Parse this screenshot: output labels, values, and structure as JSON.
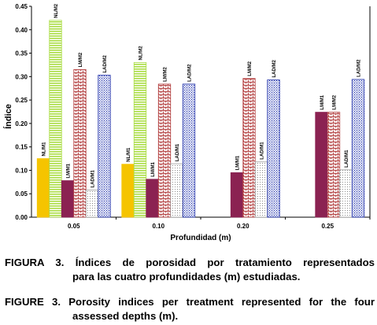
{
  "chart_data": {
    "type": "bar",
    "ylabel": "Índice",
    "xlabel": "Profundidad (m)",
    "ylim": [
      0,
      0.45
    ],
    "yticks": [
      "0.00",
      "0.05",
      "0.10",
      "0.15",
      "0.20",
      "0.25",
      "0.30",
      "0.35",
      "0.40",
      "0.45"
    ],
    "categories": [
      "0.05",
      "0.10",
      "0.20",
      "0.25"
    ],
    "grid": false,
    "legend": "labels printed above each bar",
    "series": [
      {
        "name": "NL/M1",
        "color": "#f5c400",
        "pattern": "solid",
        "values": [
          0.125,
          0.113,
          null,
          null
        ]
      },
      {
        "name": "NL/M2",
        "color": "#aadd44",
        "pattern": "hlines",
        "values": [
          0.42,
          0.33,
          null,
          null
        ]
      },
      {
        "name": "LM/M1",
        "color": "#8b2252",
        "pattern": "solid",
        "values": [
          0.078,
          0.081,
          0.095,
          0.224
        ]
      },
      {
        "name": "LM/M2",
        "color": "#b84a4a",
        "pattern": "brick",
        "values": [
          0.315,
          0.284,
          0.296,
          0.224
        ]
      },
      {
        "name": "LAD/M1",
        "color": "#9e9e9e",
        "pattern": "fine",
        "values": [
          0.058,
          0.114,
          0.118,
          0.101
        ]
      },
      {
        "name": "LAD/M2",
        "color": "#2233aa",
        "pattern": "dots",
        "values": [
          0.303,
          0.284,
          0.293,
          0.294
        ]
      }
    ],
    "bar_labels": [
      [
        "NL/M1",
        "NL/M2",
        "LM/M1",
        "LM/M2",
        "LAD/M1",
        "LAD/M2"
      ],
      [
        "NL/M1",
        "NL/M2",
        "LM/M1",
        "LM/M2",
        "LAD/M1",
        "LAD/M2"
      ],
      [
        null,
        null,
        "LM/M1",
        "LM/M2",
        "LAD/M1",
        "LAD/M2"
      ],
      [
        null,
        null,
        "LM/M1",
        "LM/M2",
        "LAD/M1",
        "LAD/M2"
      ]
    ]
  },
  "captions": {
    "es": {
      "line1": "FIGURA 3. Índices de porosidad por tratamiento representados",
      "line2": "para las cuatro profundidades (m) estudiadas."
    },
    "en": {
      "line1": "FIGURE 3. Porosity indices per treatment represented for the four",
      "line2": "assessed depths (m)."
    }
  }
}
